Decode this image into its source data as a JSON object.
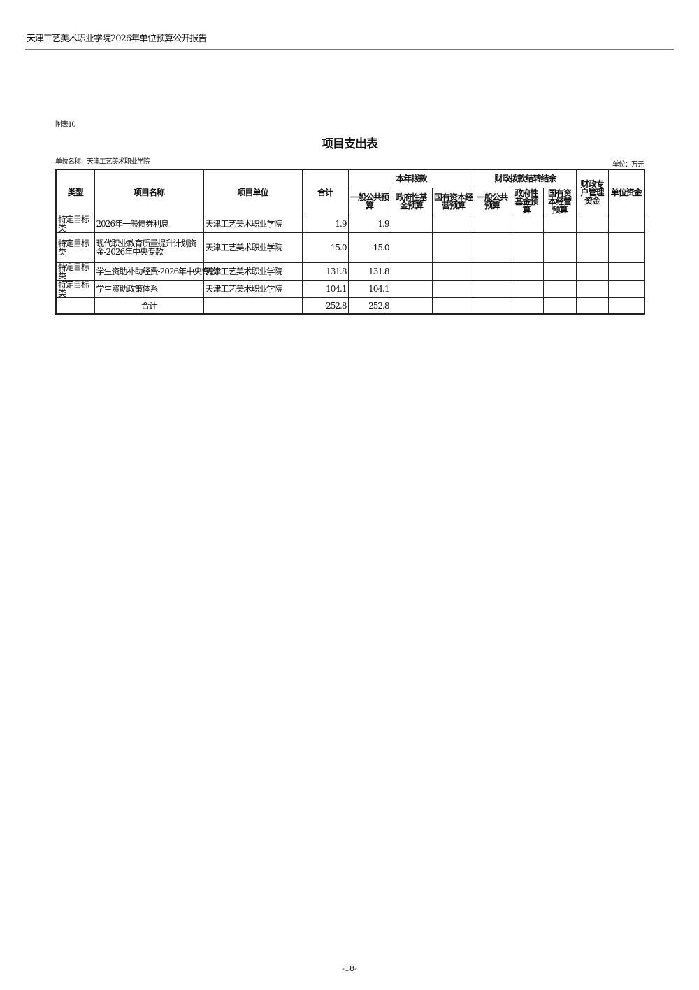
{
  "header": {
    "doc_title": "天津工艺美术职业学院2026年单位预算公开报告"
  },
  "attachment": "附表10",
  "title": "项目支出表",
  "unit_name": "单位名称：天津工艺美术职业学院",
  "unit": "单位：万元",
  "table": {
    "headers": {
      "type": "类型",
      "name": "项目名称",
      "unit": "项目单位",
      "total": "合计",
      "group1": "本年拨款",
      "g1": [
        "一般公共预算",
        "政府性基金预算",
        "国有资本经营预算"
      ],
      "group2": "财政拨款结转结余",
      "g2": [
        "一般公共预算",
        "政府性基金预算",
        "国有资本经营预算"
      ],
      "special": "财政专户管理资金",
      "own": "单位资金"
    },
    "rows": [
      {
        "type": "特定目标类",
        "name": "2026年一般债券利息",
        "unit": "天津工艺美术职业学院",
        "total": "1.9",
        "general": "1.9"
      },
      {
        "type": "特定目标类",
        "name": "现代职业教育质量提升计划资金-2026年中央专款",
        "unit": "天津工艺美术职业学院",
        "total": "15.0",
        "general": "15.0"
      },
      {
        "type": "特定目标类",
        "name": "学生资助补助经费-2026年中央专款",
        "unit": "天津工艺美术职业学院",
        "total": "131.8",
        "general": "131.8"
      },
      {
        "type": "特定目标类",
        "name": "学生资助政策体系",
        "unit": "天津工艺美术职业学院",
        "total": "104.1",
        "general": "104.1"
      }
    ],
    "sum": {
      "label": "合计",
      "total": "252.8",
      "general": "252.8"
    }
  },
  "page_number": "-18-"
}
